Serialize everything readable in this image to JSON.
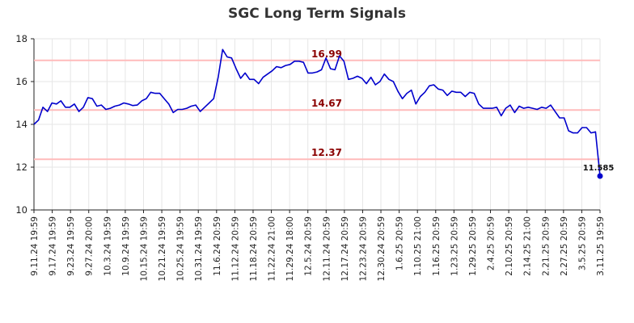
{
  "chart_data": {
    "type": "line",
    "title": "SGC Long Term Signals",
    "xlabel": "",
    "ylabel": "",
    "ylim": [
      10,
      18
    ],
    "yticks": [
      10,
      12,
      14,
      16,
      18
    ],
    "grid": true,
    "colors": {
      "line": "#0000cc",
      "reference": "#ffbbbb",
      "reference_label": "#8b0000",
      "grid": "#e6e6e6",
      "axis": "#222222"
    },
    "x_tick_labels": [
      "9.11.24 19:59",
      "9.17.24 19:59",
      "9.23.24 19:59",
      "9.27.24 20:00",
      "10.3.24 19:59",
      "10.9.24 19:59",
      "10.15.24 19:59",
      "10.21.24 19:59",
      "10.25.24 19:59",
      "10.31.24 19:59",
      "11.6.24 20:59",
      "11.12.24 20:59",
      "11.18.24 20:59",
      "11.22.24 21:00",
      "11.29.24 18:00",
      "12.5.24 20:59",
      "12.11.24 20:59",
      "12.17.24 20:59",
      "12.23.24 20:59",
      "12.30.24 20:59",
      "1.6.25 20:59",
      "1.10.25 21:00",
      "1.16.25 20:59",
      "1.23.25 20:59",
      "1.29.25 20:59",
      "2.4.25 20:59",
      "2.10.25 20:59",
      "2.14.25 21:00",
      "2.21.25 20:59",
      "2.27.25 20:59",
      "3.5.25 20:59",
      "3.11.25 19:59"
    ],
    "reference_lines": [
      {
        "value": 16.99,
        "label": "16.99"
      },
      {
        "value": 14.67,
        "label": "14.67"
      },
      {
        "value": 12.37,
        "label": "12.37"
      }
    ],
    "series": [
      {
        "values": [
          14.0,
          14.2,
          14.8,
          14.6,
          15.0,
          14.95,
          15.1,
          14.8,
          14.8,
          14.95,
          14.6,
          14.8,
          15.25,
          15.2,
          14.85,
          14.9,
          14.7,
          14.75,
          14.85,
          14.9,
          15.0,
          14.95,
          14.88,
          14.9,
          15.1,
          15.2,
          15.5,
          15.45,
          15.45,
          15.2,
          14.95,
          14.55,
          14.7,
          14.7,
          14.75,
          14.85,
          14.9,
          14.6,
          14.8,
          15.0,
          15.2,
          16.2,
          17.5,
          17.15,
          17.1,
          16.6,
          16.15,
          16.4,
          16.1,
          16.1,
          15.9,
          16.2,
          16.35,
          16.5,
          16.7,
          16.65,
          16.75,
          16.8,
          16.95,
          16.95,
          16.9,
          16.4,
          16.4,
          16.45,
          16.55,
          17.1,
          16.6,
          16.55,
          17.2,
          16.95,
          16.1,
          16.15,
          16.25,
          16.15,
          15.9,
          16.2,
          15.85,
          16.0,
          16.35,
          16.1,
          16.0,
          15.55,
          15.2,
          15.45,
          15.6,
          14.95,
          15.3,
          15.5,
          15.8,
          15.85,
          15.65,
          15.6,
          15.35,
          15.55,
          15.5,
          15.5,
          15.3,
          15.5,
          15.45,
          14.95,
          14.75,
          14.75,
          14.75,
          14.8,
          14.4,
          14.75,
          14.9,
          14.55,
          14.85,
          14.75,
          14.8,
          14.75,
          14.7,
          14.8,
          14.75,
          14.9,
          14.6,
          14.3,
          14.3,
          13.7,
          13.6,
          13.6,
          13.85,
          13.85,
          13.6,
          13.65,
          11.585
        ],
        "end_label": "11.585"
      }
    ]
  }
}
